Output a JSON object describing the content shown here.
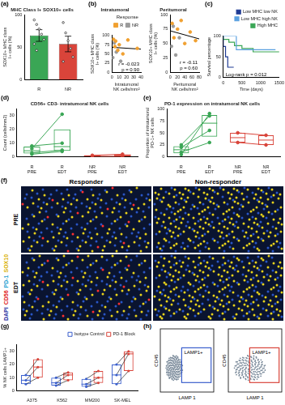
{
  "chart_data": [
    {
      "panel": "(a)",
      "type": "bar",
      "title": "MHC Class I+ SOX10+ cells",
      "ylabel": "SOX10+ MHC class I+ cells (%)",
      "categories": [
        "R",
        "NR"
      ],
      "values": [
        68,
        55
      ],
      "error": [
        9,
        12
      ],
      "points": [
        [
          92,
          85,
          78,
          70,
          62,
          55,
          45
        ],
        [
          88,
          72,
          60,
          48,
          35,
          28
        ]
      ],
      "colors": [
        "#3aa655",
        "#d9443a"
      ],
      "ylim": [
        0,
        100
      ],
      "yticks": [
        0,
        50,
        100
      ],
      "grid": false
    },
    {
      "panel": "(b)",
      "type": "scatter",
      "title": "Intratumoral",
      "xlabel": "Intratumoral NK cells/mm²",
      "ylabel": "SOX10+ MHC class I+ cells (%)",
      "legend": "top right",
      "legend_title": "Response",
      "series": [
        {
          "name": "R",
          "color": "#f0a030",
          "x": [
            2,
            4,
            5,
            8,
            10,
            15,
            22,
            35
          ],
          "values": [
            90,
            70,
            85,
            60,
            75,
            50,
            88,
            65
          ]
        },
        {
          "name": "NR",
          "color": "#9a9a9a",
          "x": [
            1,
            3,
            6,
            12
          ],
          "values": [
            40,
            80,
            55,
            30
          ]
        }
      ],
      "trend_line": {
        "x": [
          0,
          40
        ],
        "values": [
          68,
          63
        ]
      },
      "annotations": [
        "r = -0.023",
        "p = 0.90"
      ],
      "xlim": [
        0,
        40
      ],
      "xticks": [
        0,
        10,
        20,
        30,
        40
      ],
      "ylim": [
        0,
        100
      ],
      "yticks": [
        0,
        25,
        50,
        75,
        100
      ],
      "grid": false
    },
    {
      "type": "scatter",
      "title": "Peritumoral",
      "xlabel": "Peritumoral NK cells/mm²",
      "ylabel": "SOX10+ MHC class I+ cells (%)",
      "series": [
        {
          "color": "#f0a030",
          "x": [
            5,
            10,
            20,
            30,
            40,
            55,
            70
          ],
          "values": [
            85,
            60,
            75,
            90,
            50,
            70,
            55
          ]
        },
        {
          "color": "#9a9a9a",
          "x": [
            3,
            8,
            15,
            25
          ],
          "values": [
            45,
            80,
            30,
            60
          ]
        }
      ],
      "trend_line": {
        "x": [
          0,
          80
        ],
        "values": [
          72,
          58
        ]
      },
      "annotations": [
        "r = -0.11",
        "p = 0.60"
      ],
      "xlim": [
        0,
        80
      ],
      "xticks": [
        0,
        20,
        40,
        60,
        80
      ],
      "ylim": [
        0,
        100
      ],
      "yticks": [
        0,
        25,
        50,
        75,
        100
      ],
      "grid": false
    },
    {
      "panel": "(c)",
      "type": "line",
      "xlabel": "Time (days)",
      "ylabel": "Survival percentage",
      "legend": "top right",
      "line_style": "step",
      "series": [
        {
          "name": "Low MHC low NK",
          "color": "#1f3a93",
          "x": [
            0,
            60,
            120,
            200,
            280
          ],
          "values": [
            100,
            75,
            50,
            25,
            25
          ]
        },
        {
          "name": "Low MHC high NK",
          "color": "#5aa0e0",
          "x": [
            0,
            350,
            700,
            1200,
            1400
          ],
          "values": [
            100,
            100,
            67,
            67,
            67
          ]
        },
        {
          "name": "High MHC",
          "color": "#3aa655",
          "x": [
            0,
            150,
            300,
            500,
            800,
            1100,
            1500
          ],
          "values": [
            100,
            92,
            85,
            77,
            70,
            62,
            62
          ]
        }
      ],
      "annotations": [
        "Log-rank p = 0.012"
      ],
      "xlim": [
        0,
        1500
      ],
      "xticks": [
        0,
        500,
        1000,
        1500
      ],
      "ylim": [
        0,
        100
      ],
      "yticks": [
        0,
        50,
        100
      ],
      "grid": false
    },
    {
      "panel": "(d)",
      "type": "box",
      "title": "CD56+ CD3- intratumoral NK cells",
      "ylabel": "Count (cells/mm2)",
      "categories": [
        "R PRE",
        "R EDT",
        "NR PRE",
        "NR EDT"
      ],
      "colors": [
        "#3aa655",
        "#3aa655",
        "#d9443a",
        "#d9443a"
      ],
      "box": [
        [
          2.5,
          4.5,
          7.5
        ],
        [
          4.5,
          7.5,
          20
        ],
        [
          0.5,
          0.85,
          1.2
        ],
        [
          0.4,
          1.2,
          2
        ]
      ],
      "series": [
        {
          "color": "#3aa655",
          "values": [
            8,
            10,
            null,
            null
          ]
        },
        {
          "color": "#3aa655",
          "values": [
            6,
            31,
            null,
            null
          ]
        },
        {
          "color": "#3aa655",
          "values": [
            3,
            5,
            null,
            null
          ]
        },
        {
          "color": "#3aa655",
          "values": [
            2,
            4,
            null,
            null
          ]
        },
        {
          "color": "#d9443a",
          "values": [
            null,
            null,
            1.2,
            2
          ]
        },
        {
          "color": "#d9443a",
          "values": [
            null,
            null,
            0.5,
            0.4
          ]
        }
      ],
      "ylim": [
        0,
        35
      ],
      "yticks": [
        0,
        10,
        20,
        30
      ],
      "grid": false
    },
    {
      "panel": "(e)",
      "type": "box",
      "title": "PD-1 expression on intratumoral NK cells",
      "ylabel": "Proportion of intratumoral PD-1+ NK cells",
      "categories": [
        "R PRE",
        "R EDT",
        "NR PRE",
        "NR EDT"
      ],
      "colors": [
        "#3aa655",
        "#3aa655",
        "#d9443a",
        "#d9443a"
      ],
      "box": [
        [
          7.5,
          15,
          22.5
        ],
        [
          42,
          70,
          87
        ],
        [
          30,
          40,
          50
        ],
        [
          25,
          35,
          45
        ]
      ],
      "series": [
        {
          "color": "#3aa655",
          "values": [
            10,
            30,
            null,
            null
          ]
        },
        {
          "color": "#3aa655",
          "values": [
            20,
            55,
            null,
            null
          ]
        },
        {
          "color": "#3aa655",
          "values": [
            25,
            85,
            null,
            null
          ]
        },
        {
          "color": "#3aa655",
          "values": [
            5,
            90,
            null,
            null
          ]
        },
        {
          "color": "#d9443a",
          "values": [
            null,
            null,
            50,
            45
          ]
        },
        {
          "color": "#d9443a",
          "values": [
            null,
            null,
            30,
            25
          ]
        }
      ],
      "ylim": [
        0,
        100
      ],
      "yticks": [
        0,
        25,
        50,
        75,
        100
      ],
      "grid": false
    },
    {
      "panel": "(g)",
      "type": "box",
      "ylabel": "% NK cells LAMP1+",
      "legend": "top right",
      "categories": [
        "A375",
        "K562",
        "MM200",
        "SK-MEL"
      ],
      "series": [
        {
          "name": "Isotype Control",
          "color": "#3a5fcd",
          "values": [
            [
              5,
              8,
              12
            ],
            [
              4,
              6,
              10
            ],
            [
              3,
              5,
              9
            ],
            [
              5,
              12,
              20
            ]
          ],
          "box": [
            [
              5,
              8,
              12
            ],
            [
              4,
              6,
              10
            ],
            [
              3,
              5,
              9
            ],
            [
              5,
              12,
              20
            ]
          ]
        },
        {
          "name": "PD-1 Block",
          "color": "#d9443a",
          "values": [
            [
              10,
              18,
              24
            ],
            [
              8,
              12,
              14
            ],
            [
              6,
              10,
              15
            ],
            [
              15,
              28,
              30
            ]
          ],
          "box": [
            [
              10,
              18,
              24
            ],
            [
              8,
              12,
              14
            ],
            [
              6,
              10,
              15
            ],
            [
              15,
              28,
              30
            ]
          ]
        }
      ],
      "ylim": [
        0,
        35
      ],
      "yticks": [
        0,
        10,
        20,
        30
      ],
      "grid": false
    }
  ],
  "images": {
    "panel": "(f)",
    "columns": [
      "Responder",
      "Non-responder"
    ],
    "rows": [
      "PRE",
      "EDT"
    ],
    "channels": [
      {
        "name": "DAPI",
        "color": "#1a2a9c"
      },
      {
        "name": "CD56",
        "color": "#e02020"
      },
      {
        "name": "PD-1",
        "color": "#1fa0d0"
      },
      {
        "name": "SOX10",
        "color": "#d8b000"
      }
    ]
  },
  "flow": {
    "panel": "(h)",
    "xlabel": "LAMP 1",
    "ylabel": "CD45",
    "plots": [
      {
        "gate_label": "LAMP1+",
        "color": "#3a5fcd"
      },
      {
        "gate_label": "LAMP1+",
        "color": "#d9443a"
      }
    ]
  }
}
